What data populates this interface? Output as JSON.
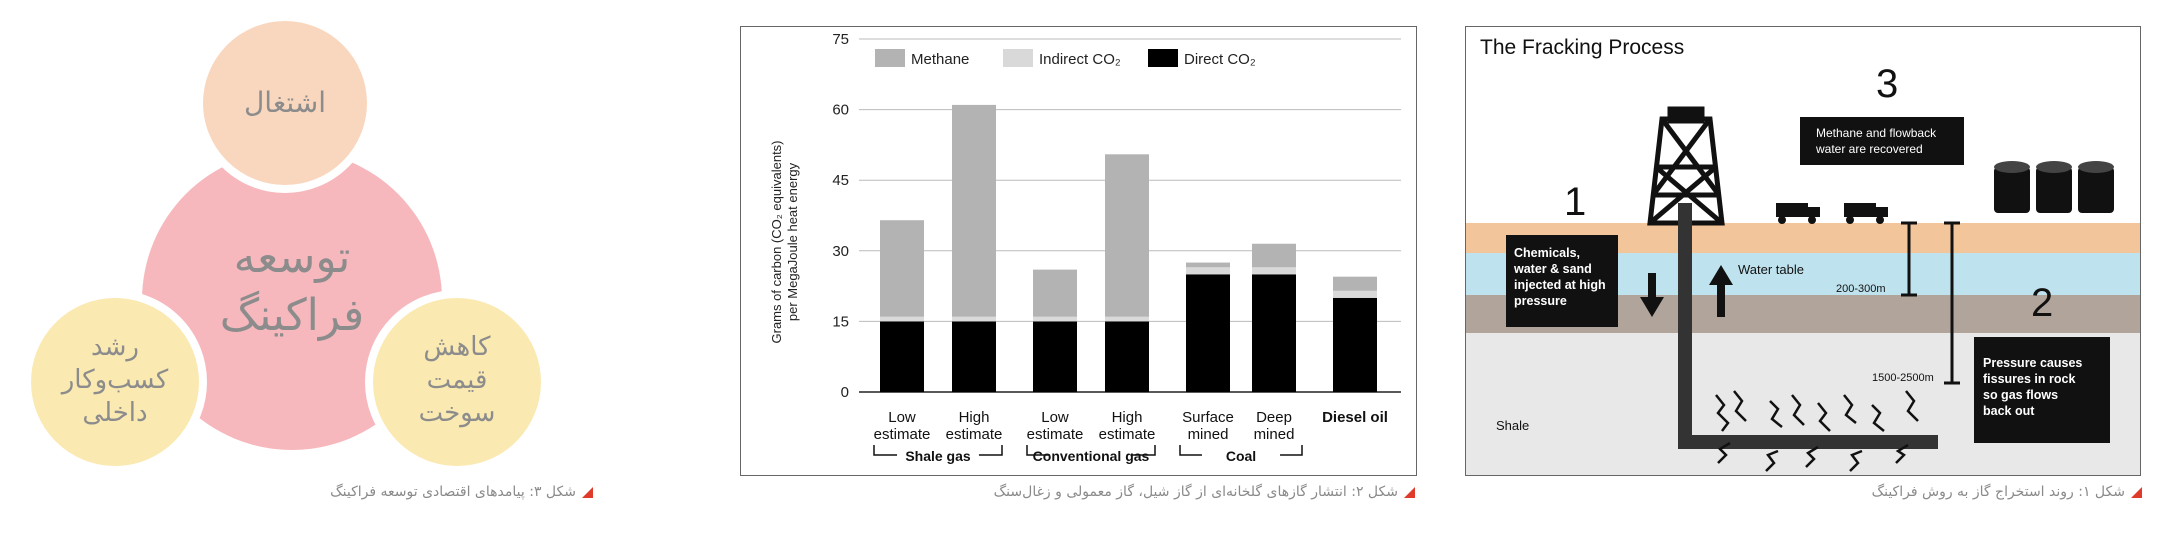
{
  "venn": {
    "center_line1": "توسعه",
    "center_line2": "فراکینگ",
    "top": "اشتغال",
    "left_line1": "رشد",
    "left_line2": "کسب‌وکار",
    "left_line3": "داخلی",
    "right_line1": "کاهش",
    "right_line2": "قیمت",
    "right_line3": "سوخت",
    "caption": "شکل ۳: پیامدهای اقتصادی توسعه فراکینگ",
    "colors": {
      "center": "#f6b8bd",
      "top": "#f9d7bf",
      "side": "#fbe9b2",
      "text": "#8c8c8c"
    }
  },
  "chart_caption": "شکل ۲: انتشار گازهای گلخانه‌ای از گاز شیل، گاز معمولی و زغال‌سنگ",
  "chart_data": {
    "type": "bar",
    "stacked": true,
    "ylabel_line1": "Grams of carbon (CO₂ equivalents)",
    "ylabel_line2": "per MegaJoule heat energy",
    "ylim": [
      0,
      75
    ],
    "yticks": [
      "0",
      "15",
      "30",
      "45",
      "60",
      "75"
    ],
    "grid": true,
    "legend_position": "top-left",
    "categories": [
      {
        "line1": "Low",
        "line2": "estimate"
      },
      {
        "line1": "High",
        "line2": "estimate"
      },
      {
        "line1": "Low",
        "line2": "estimate"
      },
      {
        "line1": "High",
        "line2": "estimate"
      },
      {
        "line1": "Surface",
        "line2": "mined"
      },
      {
        "line1": "Deep",
        "line2": "mined"
      },
      {
        "line1": "Diesel oil",
        "line2": ""
      }
    ],
    "groups": [
      {
        "label": "Shale gas",
        "members": [
          0,
          1
        ]
      },
      {
        "label": "Conventional gas",
        "members": [
          2,
          3
        ]
      },
      {
        "label": "Coal",
        "members": [
          4,
          5
        ]
      }
    ],
    "series": [
      {
        "name": "Direct CO₂",
        "color": "#000000",
        "values": [
          15,
          15,
          15,
          15,
          25,
          25,
          20
        ]
      },
      {
        "name": "Indirect CO₂",
        "color": "#d9d9d9",
        "values": [
          1,
          1,
          1,
          1,
          1.5,
          1.5,
          1.5
        ]
      },
      {
        "name": "Methane",
        "color": "#b3b3b3",
        "values": [
          20.5,
          45,
          10,
          34.5,
          1,
          5,
          3
        ]
      }
    ],
    "legend_order": [
      "Methane",
      "Indirect CO₂",
      "Direct CO₂"
    ]
  },
  "fracking": {
    "title": "The Fracking Process",
    "step1": "1",
    "step2": "2",
    "step3": "3",
    "box1_lines": [
      "Chemicals,",
      "water & sand",
      "injected at high",
      "pressure"
    ],
    "box2_lines": [
      "Pressure causes",
      "fissures in rock",
      "so gas flows",
      "back out"
    ],
    "box3_lines": [
      "Methane and flowback",
      "water are recovered"
    ],
    "water_table": "Water table",
    "depth1": "200-300m",
    "depth2": "1500-2500m",
    "shale": "Shale",
    "caption": "شکل ۱: روند استخراج گاز به روش فراکینگ",
    "colors": {
      "surface": "#f3c59a",
      "water": "#bfe3ee",
      "rock": "#b1a49b",
      "shale": "#e8e8e8"
    }
  }
}
